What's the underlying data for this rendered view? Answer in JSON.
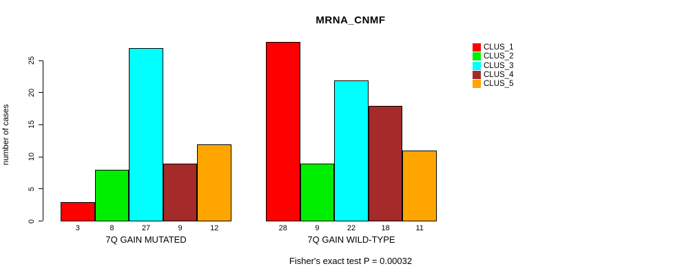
{
  "chart_data": {
    "type": "bar",
    "title": "MRNA_CNMF",
    "ylabel": "number of cases",
    "xlabel": "",
    "footer": "Fisher's exact test P = 0.00032",
    "categories": [
      "7Q GAIN MUTATED",
      "7Q GAIN WILD-TYPE"
    ],
    "groups": [
      {
        "label": "7Q GAIN MUTATED",
        "values": [
          3,
          8,
          27,
          9,
          12
        ]
      },
      {
        "label": "7Q GAIN WILD-TYPE",
        "values": [
          28,
          9,
          22,
          18,
          11
        ]
      }
    ],
    "series": [
      {
        "name": "CLUS_1",
        "color": "#FF0000",
        "values": [
          3,
          28
        ]
      },
      {
        "name": "CLUS_2",
        "color": "#00EE00",
        "values": [
          8,
          9
        ]
      },
      {
        "name": "CLUS_3",
        "color": "#00FFFF",
        "values": [
          27,
          22
        ]
      },
      {
        "name": "CLUS_4",
        "color": "#A52A2A",
        "values": [
          9,
          18
        ]
      },
      {
        "name": "CLUS_5",
        "color": "#FFA500",
        "values": [
          12,
          11
        ]
      }
    ],
    "yticks": [
      0,
      5,
      10,
      15,
      20,
      25
    ],
    "ylim": [
      0,
      28
    ],
    "grid": false,
    "legend_position": "right",
    "bar_border_color": "#000000"
  }
}
